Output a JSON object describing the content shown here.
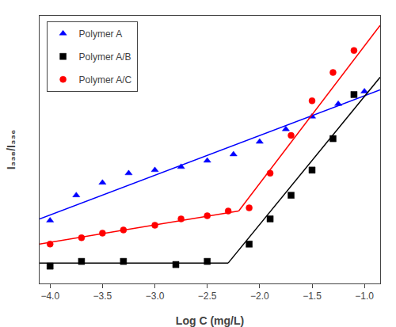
{
  "chart_data": {
    "type": "scatter",
    "x_label": "Log C (mg/L)",
    "y_label": "I₃₃₈/I₃₃₆",
    "xlim": [
      -4.1,
      -0.85
    ],
    "ylim": [
      0.73,
      1.58
    ],
    "xticks": [
      {
        "value": -4.0,
        "label": "−4.0"
      },
      {
        "value": -3.5,
        "label": "−3.5"
      },
      {
        "value": -3.0,
        "label": "−3.0"
      },
      {
        "value": -2.5,
        "label": "−2.5"
      },
      {
        "value": -2.0,
        "label": "−2.0"
      },
      {
        "value": -1.5,
        "label": "−1.5"
      },
      {
        "value": -1.0,
        "label": "−1.0"
      }
    ],
    "yticks": [],
    "tick_labels": "x",
    "grid": false,
    "legend": "upper left",
    "series": [
      {
        "name": "Polymer A",
        "color": "blue",
        "marker": "triangle",
        "x": [
          -4.0,
          -3.75,
          -3.5,
          -3.25,
          -3.0,
          -2.75,
          -2.5,
          -2.25,
          -2.0,
          -1.75,
          -1.5,
          -1.25,
          -1.0
        ],
        "values": [
          0.93,
          1.01,
          1.05,
          1.08,
          1.09,
          1.1,
          1.12,
          1.14,
          1.18,
          1.22,
          1.26,
          1.3,
          1.34
        ],
        "fit_lines": [
          {
            "x": [
              -4.1,
              -0.85
            ],
            "values": [
              0.935,
              1.345
            ]
          }
        ]
      },
      {
        "name": "Polymer A/B",
        "color": "black",
        "marker": "square",
        "x": [
          -4.0,
          -3.7,
          -3.3,
          -2.8,
          -2.5,
          -2.1,
          -1.9,
          -1.7,
          -1.5,
          -1.3,
          -1.1
        ],
        "values": [
          0.785,
          0.8,
          0.8,
          0.79,
          0.8,
          0.855,
          0.935,
          1.01,
          1.09,
          1.19,
          1.33
        ],
        "fit_lines": [
          {
            "x": [
              -4.1,
              -2.3
            ],
            "values": [
              0.795,
              0.795
            ]
          },
          {
            "x": [
              -2.3,
              -0.85
            ],
            "values": [
              0.795,
              1.385
            ]
          }
        ]
      },
      {
        "name": "Polymer A/C",
        "color": "red",
        "marker": "circle",
        "x": [
          -4.0,
          -3.7,
          -3.5,
          -3.3,
          -3.0,
          -2.75,
          -2.5,
          -2.3,
          -2.1,
          -1.9,
          -1.7,
          -1.5,
          -1.3,
          -1.1
        ],
        "values": [
          0.855,
          0.875,
          0.89,
          0.9,
          0.915,
          0.935,
          0.945,
          0.96,
          0.97,
          1.08,
          1.2,
          1.31,
          1.4,
          1.47
        ],
        "fit_lines": [
          {
            "x": [
              -4.1,
              -2.2
            ],
            "values": [
              0.855,
              0.96
            ]
          },
          {
            "x": [
              -2.2,
              -0.85
            ],
            "values": [
              0.96,
              1.55
            ]
          }
        ]
      }
    ]
  }
}
